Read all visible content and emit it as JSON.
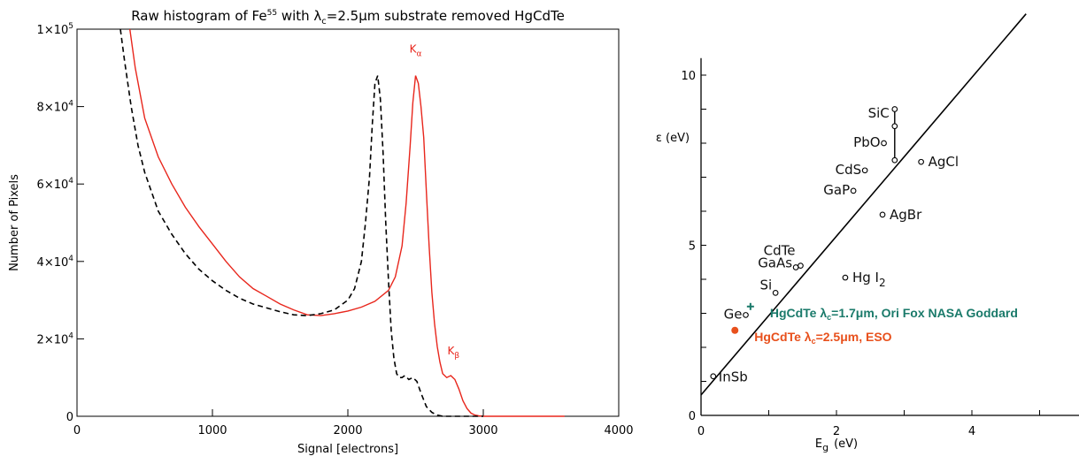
{
  "chart_data": [
    {
      "type": "line",
      "title": "Raw histogram of Fe⁵⁵ with λc=2.5μm substrate removed HgCdTe",
      "title_parts": {
        "pre": "Raw histogram of Fe",
        "sup": "55",
        "mid": " with λ",
        "sub": "c",
        "post": "=2.5μm substrate removed HgCdTe"
      },
      "xlabel": "Signal [electrons]",
      "ylabel": "Number of Pixels",
      "xlim": [
        0,
        4000
      ],
      "ylim": [
        0,
        100000
      ],
      "x_ticks": [
        "0",
        "1000",
        "2000",
        "3000",
        "4000"
      ],
      "y_ticks": [
        {
          "value": 0,
          "label": "0"
        },
        {
          "value": 20000,
          "label": "2×10",
          "exp": "4"
        },
        {
          "value": 40000,
          "label": "4×10",
          "exp": "4"
        },
        {
          "value": 60000,
          "label": "6×10",
          "exp": "4"
        },
        {
          "value": 80000,
          "label": "8×10",
          "exp": "4"
        },
        {
          "value": 100000,
          "label": "1×10",
          "exp": "5"
        }
      ],
      "annotations": [
        {
          "text": "K",
          "sub": "α",
          "x": 2500,
          "y": 94000,
          "color": "#e8261c"
        },
        {
          "text": "K",
          "sub": "β",
          "x": 2780,
          "y": 16000,
          "color": "#e8261c"
        }
      ],
      "series": [
        {
          "style": "solid",
          "color": "#e8261c",
          "x": [
            390,
            430,
            500,
            600,
            700,
            800,
            900,
            1000,
            1100,
            1200,
            1300,
            1400,
            1500,
            1600,
            1700,
            1800,
            1900,
            2000,
            2100,
            2200,
            2300,
            2350,
            2400,
            2430,
            2460,
            2480,
            2500,
            2520,
            2540,
            2560,
            2580,
            2600,
            2620,
            2640,
            2660,
            2680,
            2700,
            2730,
            2760,
            2790,
            2820,
            2850,
            2880,
            2910,
            2940,
            2970,
            3000,
            3100,
            3300,
            3600
          ],
          "y": [
            100000,
            90000,
            77000,
            67000,
            60000,
            54000,
            49000,
            44500,
            40000,
            36000,
            33000,
            31000,
            29000,
            27500,
            26200,
            26000,
            26500,
            27200,
            28200,
            29700,
            32500,
            36000,
            44000,
            55000,
            70000,
            81000,
            88000,
            86000,
            80000,
            72000,
            58000,
            44000,
            32000,
            24000,
            18000,
            14000,
            11000,
            10000,
            10500,
            9500,
            7000,
            4000,
            2000,
            800,
            300,
            100,
            0,
            0,
            0,
            0
          ]
        },
        {
          "style": "dashed",
          "color": "#000000",
          "x": [
            320,
            350,
            400,
            450,
            500,
            600,
            700,
            800,
            900,
            1000,
            1100,
            1200,
            1300,
            1400,
            1500,
            1600,
            1700,
            1800,
            1900,
            2000,
            2050,
            2100,
            2130,
            2160,
            2180,
            2200,
            2220,
            2240,
            2260,
            2280,
            2300,
            2320,
            2340,
            2360,
            2380,
            2400,
            2420,
            2450,
            2480,
            2510,
            2540,
            2580,
            2620,
            2660,
            2700,
            2800,
            3000
          ],
          "y": [
            100000,
            92000,
            80000,
            70000,
            63000,
            53000,
            47000,
            42000,
            38000,
            35000,
            32500,
            30500,
            29000,
            28000,
            27000,
            26200,
            26000,
            26500,
            27500,
            30000,
            33000,
            40000,
            50000,
            62000,
            75000,
            86000,
            88000,
            82000,
            68000,
            50000,
            35000,
            22000,
            15000,
            11000,
            10000,
            10000,
            10500,
            9500,
            10000,
            9000,
            6000,
            2500,
            1000,
            300,
            0,
            0,
            0
          ]
        }
      ]
    },
    {
      "type": "scatter",
      "xlabel": "E",
      "xlabel_sub": "g",
      "xlabel_unit": "(eV)",
      "ylabel": "ε (eV)",
      "xlim": [
        -0.1,
        5.5
      ],
      "ylim": [
        0,
        10.5
      ],
      "x_ticks": [
        "0",
        "2",
        "4"
      ],
      "y_ticks": [
        "0",
        "5",
        "10"
      ],
      "fit_line": {
        "x": [
          0,
          4.8
        ],
        "y": [
          0.6,
          11.8
        ]
      },
      "points": [
        {
          "label": "InSb",
          "x": 0.18,
          "y": 1.15
        },
        {
          "label": "Ge",
          "x": 0.66,
          "y": 2.95
        },
        {
          "label": "Si",
          "x": 1.1,
          "y": 3.6
        },
        {
          "label": "GaAs",
          "x": 1.4,
          "y": 4.35
        },
        {
          "label": "CdTe",
          "x": 1.47,
          "y": 4.4
        },
        {
          "label": "GaP",
          "x": 2.25,
          "y": 6.6
        },
        {
          "label": "CdS",
          "x": 2.42,
          "y": 7.2
        },
        {
          "label": "PbO",
          "x": 2.7,
          "y": 8.0
        },
        {
          "label": "SiC",
          "x": 2.86,
          "y": 8.5
        },
        {
          "label": "",
          "x": 2.86,
          "y": 9.0
        },
        {
          "label": "",
          "x": 2.86,
          "y": 7.5
        },
        {
          "label": "AgCl",
          "x": 3.25,
          "y": 7.45
        },
        {
          "label": "AgBr",
          "x": 2.68,
          "y": 5.9
        },
        {
          "label": "Hg I",
          "label_sub": "2",
          "x": 2.13,
          "y": 4.05
        }
      ],
      "highlights": [
        {
          "label": "HgCdTe λc=1.7μm, Ori Fox NASA Goddard",
          "parts": {
            "pre": "HgCdTe λ",
            "sub": "c",
            "post": "=1.7μm, Ori Fox NASA Goddard"
          },
          "x": 0.73,
          "y": 3.2,
          "color": "#1a7a6a",
          "marker": "+"
        },
        {
          "label": "HgCdTe λc=2.5μm, ESO",
          "parts": {
            "pre": "HgCdTe λ",
            "sub": "c",
            "post": "=2.5μm, ESO"
          },
          "x": 0.5,
          "y": 2.5,
          "color": "#e8501c",
          "marker": "dot"
        }
      ]
    }
  ]
}
